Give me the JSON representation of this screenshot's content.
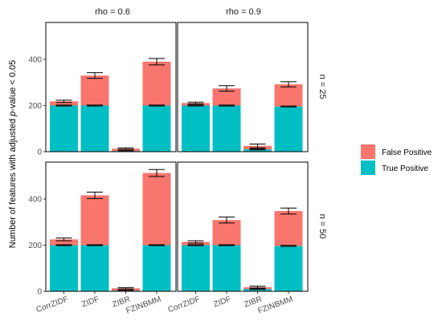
{
  "chart_data": {
    "type": "bar",
    "stacked": true,
    "ylabel": "Number of features with adjusted p-value < 0.05",
    "ylabel_parts": [
      "Number of features with adjusted ",
      "p",
      "-value < 0.05"
    ],
    "categories": [
      "CorrZIDF",
      "ZIDF",
      "ZIBR",
      "FZINBMM"
    ],
    "ylim": [
      0,
      560
    ],
    "yticks": [
      0,
      200,
      400
    ],
    "grid": false,
    "legend_position": "right",
    "colors": {
      "true_positive": "#00BFC4",
      "false_positive": "#F8766D"
    },
    "series_names": [
      "False Positive",
      "True Positive"
    ],
    "col_facets": [
      "rho = 0.6",
      "rho = 0.9"
    ],
    "row_facets": [
      "n = 25",
      "n = 50"
    ],
    "panels": [
      {
        "row": 0,
        "col": 0,
        "true_positive": [
          200,
          200,
          3,
          200
        ],
        "total": [
          218,
          330,
          13,
          390
        ],
        "error": [
          5,
          12,
          3,
          14
        ]
      },
      {
        "row": 0,
        "col": 1,
        "true_positive": [
          200,
          200,
          10,
          196
        ],
        "total": [
          211,
          274,
          25,
          292
        ],
        "error": [
          4,
          12,
          8,
          11
        ]
      },
      {
        "row": 1,
        "col": 0,
        "true_positive": [
          200,
          200,
          3,
          200
        ],
        "total": [
          225,
          416,
          13,
          513
        ],
        "error": [
          6,
          14,
          3,
          15
        ]
      },
      {
        "row": 1,
        "col": 1,
        "true_positive": [
          200,
          200,
          10,
          197
        ],
        "total": [
          214,
          309,
          18,
          348
        ],
        "error": [
          5,
          13,
          4,
          13
        ]
      }
    ]
  }
}
